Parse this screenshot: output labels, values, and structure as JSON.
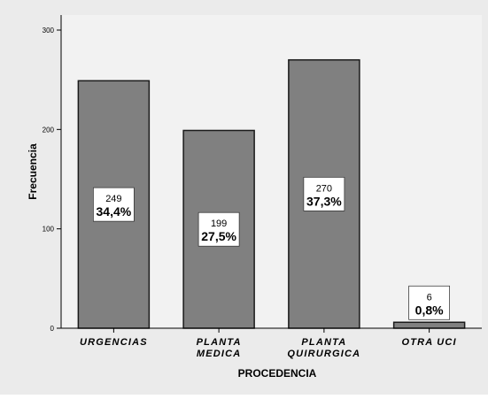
{
  "chart_data": {
    "type": "bar",
    "categories": [
      [
        "URGENCIAS"
      ],
      [
        "PLANTA",
        "MEDICA"
      ],
      [
        "PLANTA",
        "QUIRURGICA"
      ],
      [
        "OTRA UCI"
      ]
    ],
    "values": [
      249,
      199,
      270,
      6
    ],
    "percent_labels": [
      "34,4%",
      "27,5%",
      "37,3%",
      "0,8%"
    ],
    "count_labels": [
      "249",
      "199",
      "270",
      "6"
    ],
    "xlabel": "PROCEDENCIA",
    "ylabel": "Frecuencia",
    "ylim": [
      0,
      300
    ],
    "yticks": [
      "0",
      "100",
      "200",
      "300"
    ],
    "ytick_values": [
      0,
      100,
      200,
      300
    ],
    "grid": false,
    "colors": {
      "bar_fill": "#808080",
      "bar_stroke": "#1a1a1a",
      "plot_background": "#f2f2f2",
      "page_background": "#ebebeb",
      "axis": "#000000",
      "text": "#000000"
    }
  }
}
